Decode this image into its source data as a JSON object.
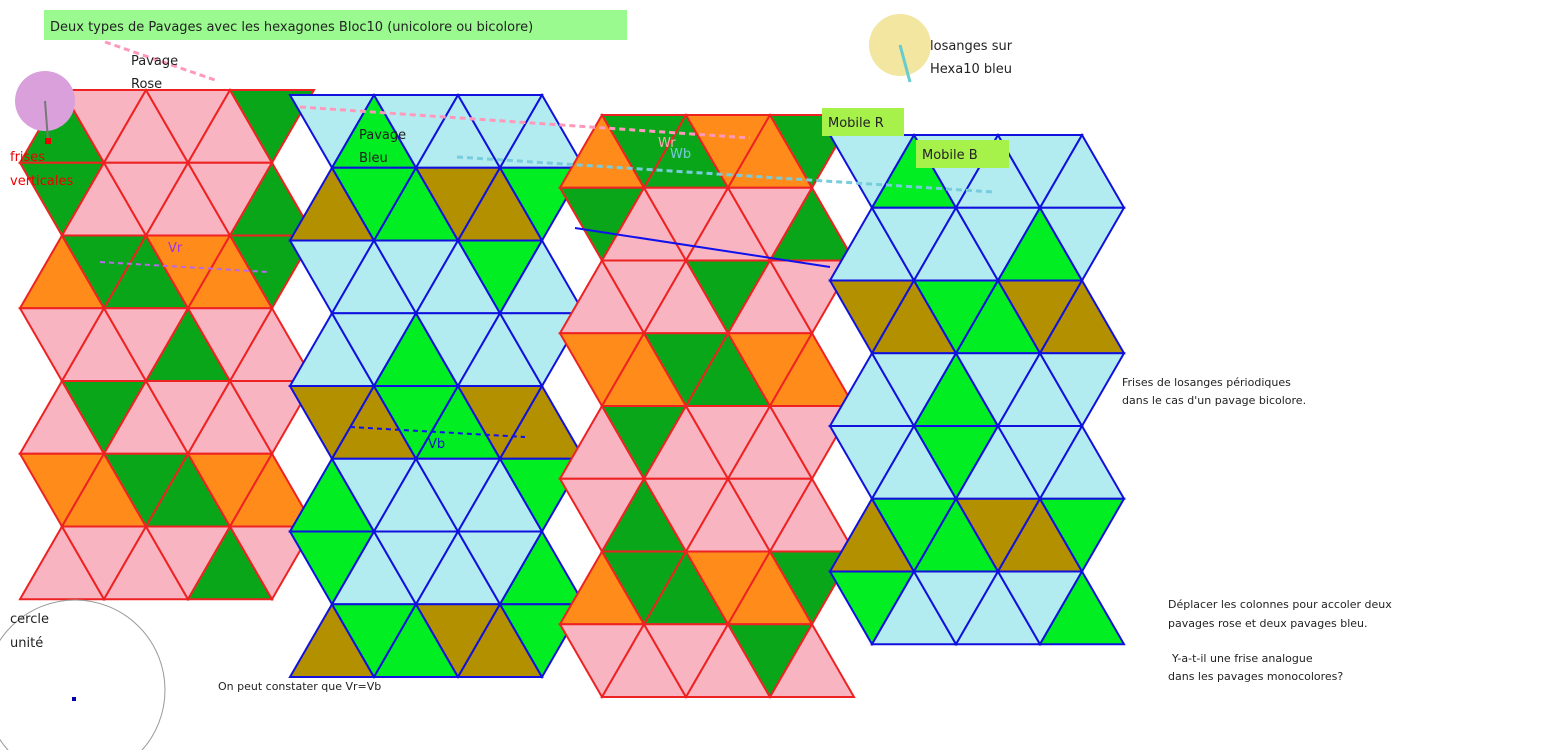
{
  "title": "Deux types de Pavages avec les hexagones Bloc10 (unicolore ou bicolore)",
  "pavage_rose": [
    "Pavage",
    "Rose"
  ],
  "pavage_bleu": [
    "Pavage",
    "Bleu"
  ],
  "frises_verticales": [
    "frises",
    "verticales"
  ],
  "losanges": [
    "losanges sur",
    "Hexa10 bleu"
  ],
  "mobile_r": "Mobile R",
  "mobile_b": "Mobile B",
  "vectors": {
    "vr": "Vr",
    "vb": "Vb",
    "wr": "Wr",
    "wb": "Wb"
  },
  "note_frises": [
    "Frises de losanges périodiques",
    "dans le cas d'un pavage bicolore."
  ],
  "note_deplacer": [
    "Déplacer les colonnes pour accoler deux",
    "pavages rose et deux pavages bleu."
  ],
  "note_question": [
    "Y-a-t-il une frise analogue",
    "dans les pavages monocolores?"
  ],
  "cercle_unite": [
    "cercle",
    "unité"
  ],
  "constat": "On peut constater que Vr=Vb"
}
